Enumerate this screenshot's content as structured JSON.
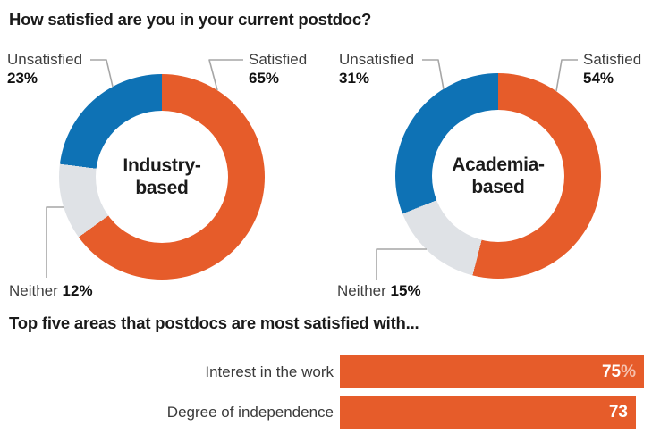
{
  "colors": {
    "orange": "#E65C2A",
    "blue": "#0E72B5",
    "gray": "#DFE2E6",
    "title_text": "#1b1b1b",
    "label_text": "#3f3f3f",
    "leader_line": "#a6a6a6"
  },
  "section1": {
    "title": "How satisfied are you in your current postdoc?",
    "donuts": [
      {
        "center_line1": "Industry-",
        "center_line2": "based",
        "unsatisfied_label": "Unsatisfied",
        "unsatisfied_value": "23%",
        "satisfied_label": "Satisfied",
        "satisfied_value": "65%",
        "neither_label": "Neither",
        "neither_value": "12%"
      },
      {
        "center_line1": "Academia-",
        "center_line2": "based",
        "unsatisfied_label": "Unsatisfied",
        "unsatisfied_value": "31%",
        "satisfied_label": "Satisfied",
        "satisfied_value": "54%",
        "neither_label": "Neither",
        "neither_value": "15%"
      }
    ]
  },
  "section2": {
    "title": "Top five areas that postdocs are most satisfied with...",
    "bars": [
      {
        "label": "Interest in the work",
        "value_text": "75",
        "value_suffix": "%"
      },
      {
        "label": "Degree of independence",
        "value_text": "73",
        "value_suffix": ""
      }
    ]
  },
  "chart_data": [
    {
      "type": "pie",
      "donut": true,
      "title": "Industry-based",
      "unit": "%",
      "start_angle": "top, clockwise",
      "slices": [
        {
          "label": "Satisfied",
          "value": 65,
          "color": "#E65C2A"
        },
        {
          "label": "Neither",
          "value": 12,
          "color": "#DFE2E6"
        },
        {
          "label": "Unsatisfied",
          "value": 23,
          "color": "#0E72B5"
        }
      ]
    },
    {
      "type": "pie",
      "donut": true,
      "title": "Academia-based",
      "unit": "%",
      "start_angle": "top, clockwise",
      "slices": [
        {
          "label": "Satisfied",
          "value": 54,
          "color": "#E65C2A"
        },
        {
          "label": "Neither",
          "value": 15,
          "color": "#DFE2E6"
        },
        {
          "label": "Unsatisfied",
          "value": 31,
          "color": "#0E72B5"
        }
      ]
    },
    {
      "type": "bar",
      "orientation": "horizontal",
      "title": "Top five areas that postdocs are most satisfied with...",
      "categories": [
        "Interest in the work",
        "Degree of independence"
      ],
      "values": [
        75,
        73
      ],
      "value_labels": [
        "75%",
        "73"
      ],
      "xlim": [
        0,
        80
      ],
      "legend": "none",
      "grid": false
    }
  ]
}
